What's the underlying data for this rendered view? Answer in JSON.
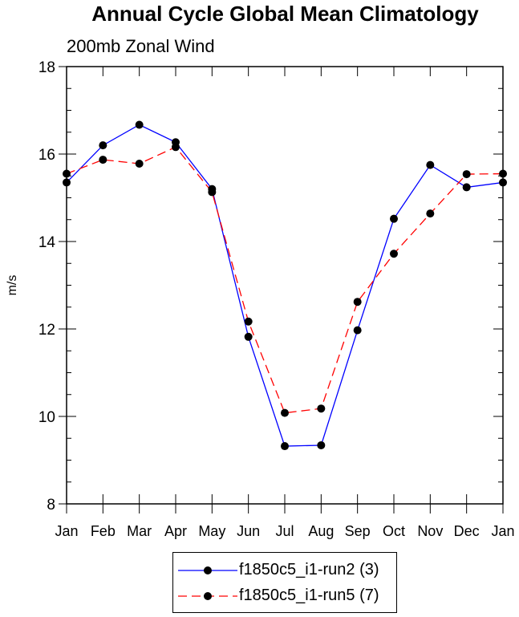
{
  "chart_data": {
    "type": "line",
    "title": "Annual Cycle Global Mean Climatology",
    "subtitle": "200mb Zonal Wind",
    "ylabel": "m/s",
    "xlabel": "",
    "ylim": [
      8,
      18
    ],
    "yticks": [
      8,
      10,
      12,
      14,
      16,
      18
    ],
    "categories": [
      "Jan",
      "Feb",
      "Mar",
      "Apr",
      "May",
      "Jun",
      "Jul",
      "Aug",
      "Sep",
      "Oct",
      "Nov",
      "Dec",
      "Jan"
    ],
    "series": [
      {
        "name": "f1850c5_i1-run2 (3)",
        "color": "#0000ff",
        "dash": "solid",
        "values": [
          15.35,
          16.2,
          16.67,
          16.27,
          15.2,
          11.82,
          9.32,
          9.34,
          11.97,
          14.52,
          15.75,
          15.24,
          15.35
        ]
      },
      {
        "name": "f1850c5_i1-run5 (7)",
        "color": "#ff0000",
        "dash": "dashed",
        "values": [
          15.55,
          15.87,
          15.78,
          16.16,
          15.13,
          12.17,
          10.08,
          10.18,
          12.62,
          13.72,
          14.64,
          15.54,
          15.55
        ]
      }
    ]
  }
}
